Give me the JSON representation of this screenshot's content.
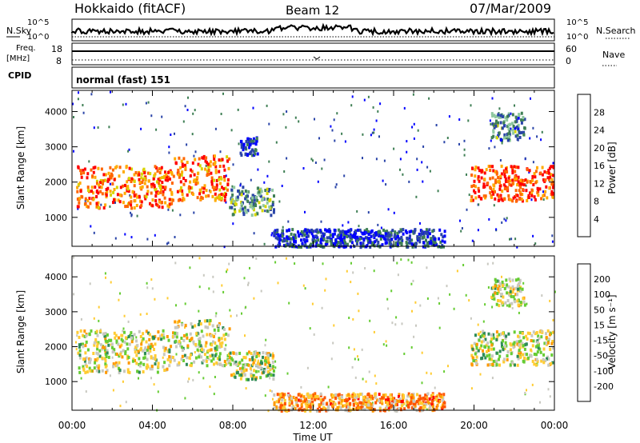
{
  "header": {
    "title": "Hokkaido (fitACF)",
    "beam": "Beam 12",
    "date": "07/Mar/2009"
  },
  "top_panels": {
    "nsky_label": "N.Sky",
    "nsky_ticks": [
      "10^5",
      "10^0"
    ],
    "nsearch_label": "N.Search",
    "nsearch_ticks": [
      "10^5",
      "10^0"
    ],
    "freq_label_1": "Freq.",
    "freq_label_2": "[MHz]",
    "freq_ticks": [
      "18",
      "8"
    ],
    "nave_label": "Nave",
    "nave_ticks": [
      "60",
      "0"
    ],
    "cpid_label": "CPID",
    "cpid_value": "normal (fast) 151"
  },
  "colors": {
    "power": [
      "#0000ff",
      "#2a44a8",
      "#3f7f55",
      "#8fc8a0",
      "#d6d600",
      "#ffaa00",
      "#ff6600",
      "#ff0000"
    ],
    "velocity": [
      "#ff0000",
      "#ff5500",
      "#ff9900",
      "#ffcc33",
      "#c8c8c0",
      "#66cc33",
      "#2e8b57",
      "#2a44a8",
      "#1a1ab0"
    ]
  },
  "chart_data": [
    {
      "type": "heatmap",
      "name": "power",
      "ylabel": "Slant Range [km]",
      "y_ticks": [
        "1000",
        "2000",
        "3000",
        "4000"
      ],
      "y_tick_values": [
        1000,
        2000,
        3000,
        4000
      ],
      "ylim": [
        180,
        4600
      ],
      "colorbar_label": "Power [dB]",
      "colorbar_ticks": [
        "4",
        "8",
        "12",
        "16",
        "20",
        "24",
        "28"
      ],
      "blocks": [
        {
          "t0": 0.2,
          "t1": 5.0,
          "r0": 1300,
          "r1": 2500,
          "level": 0.8
        },
        {
          "t0": 5.0,
          "t1": 7.8,
          "r0": 1500,
          "r1": 2800,
          "level": 0.8
        },
        {
          "t0": 7.8,
          "t1": 10.0,
          "r0": 1100,
          "r1": 1900,
          "level": 0.35
        },
        {
          "t0": 8.3,
          "t1": 9.2,
          "r0": 2800,
          "r1": 3300,
          "level": 0.1
        },
        {
          "t0": 10.0,
          "t1": 18.5,
          "r0": 200,
          "r1": 700,
          "level": 0.15
        },
        {
          "t0": 19.8,
          "t1": 23.9,
          "r0": 1500,
          "r1": 2500,
          "level": 0.85
        },
        {
          "t0": 20.8,
          "t1": 22.5,
          "r0": 3200,
          "r1": 4000,
          "level": 0.3
        }
      ]
    },
    {
      "type": "heatmap",
      "name": "velocity",
      "ylabel": "Slant Range [km]",
      "y_ticks": [
        "1000",
        "2000",
        "3000",
        "4000"
      ],
      "y_tick_values": [
        1000,
        2000,
        3000,
        4000
      ],
      "ylim": [
        180,
        4600
      ],
      "colorbar_label": "Velocity [m s⁻¹]",
      "colorbar_ticks": [
        "200",
        "100",
        "50",
        "15",
        "-15",
        "-50",
        "-100",
        "-200"
      ],
      "xlabel": "Time UT",
      "x_ticks": [
        "00:00",
        "04:00",
        "08:00",
        "12:00",
        "16:00",
        "20:00",
        "00:00"
      ],
      "x_tick_hours": [
        0,
        4,
        8,
        12,
        16,
        20,
        24
      ],
      "xlim": [
        0,
        24
      ],
      "blocks": [
        {
          "t0": 0.2,
          "t1": 5.0,
          "r0": 1300,
          "r1": 2500,
          "level": 0.5
        },
        {
          "t0": 5.0,
          "t1": 7.8,
          "r0": 1500,
          "r1": 2800,
          "level": 0.5
        },
        {
          "t0": 7.8,
          "t1": 10.0,
          "r0": 1100,
          "r1": 1900,
          "level": 0.5
        },
        {
          "t0": 10.0,
          "t1": 18.5,
          "r0": 200,
          "r1": 700,
          "level": 0.3
        },
        {
          "t0": 19.8,
          "t1": 23.9,
          "r0": 1500,
          "r1": 2500,
          "level": 0.5
        },
        {
          "t0": 20.8,
          "t1": 22.5,
          "r0": 3200,
          "r1": 4000,
          "level": 0.5
        }
      ]
    }
  ]
}
